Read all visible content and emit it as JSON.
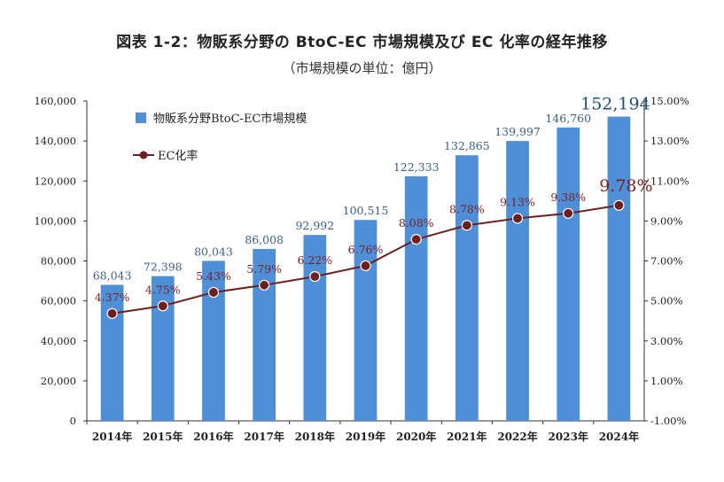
{
  "title": "図表 1-2：物販系分野の BtoC-EC 市場規模及び EC 化率の経年推移",
  "subtitle": "（市場規模の単位：億円）",
  "chart_data": {
    "type": "bar",
    "categories": [
      "2014年",
      "2015年",
      "2016年",
      "2017年",
      "2018年",
      "2019年",
      "2020年",
      "2021年",
      "2022年",
      "2023年",
      "2024年"
    ],
    "series": [
      {
        "name": "物販系分野BtoC-EC市場規模",
        "type": "bar",
        "axis": "left",
        "color": "#4f8fd8",
        "values": [
          68043,
          72398,
          80043,
          86008,
          92992,
          100515,
          122333,
          132865,
          139997,
          146760,
          152194
        ],
        "labels": [
          "68,043",
          "72,398",
          "80,043",
          "86,008",
          "92,992",
          "100,515",
          "122,333",
          "132,865",
          "139,997",
          "146,760",
          "152,194"
        ]
      },
      {
        "name": "EC化率",
        "type": "line",
        "axis": "right",
        "color": "#6b1f1f",
        "values": [
          4.37,
          4.75,
          5.43,
          5.79,
          6.22,
          6.76,
          8.08,
          8.78,
          9.13,
          9.38,
          9.78
        ],
        "labels": [
          "4.37%",
          "4.75%",
          "5.43%",
          "5.79%",
          "6.22%",
          "6.76%",
          "8.08%",
          "8.78%",
          "9.13%",
          "9.38%",
          "9.78%"
        ]
      }
    ],
    "y_left": {
      "ylim": [
        0,
        160000
      ],
      "ticks": [
        "0",
        "20,000",
        "40,000",
        "60,000",
        "80,000",
        "100,000",
        "120,000",
        "140,000",
        "160,000"
      ]
    },
    "y_right": {
      "ylim": [
        -1.0,
        15.0
      ],
      "ticks": [
        "-1.00%",
        "1.00%",
        "3.00%",
        "5.00%",
        "7.00%",
        "9.00%",
        "11.00%",
        "13.00%",
        "15.00%"
      ]
    },
    "grid": false,
    "legend": "top-left"
  }
}
